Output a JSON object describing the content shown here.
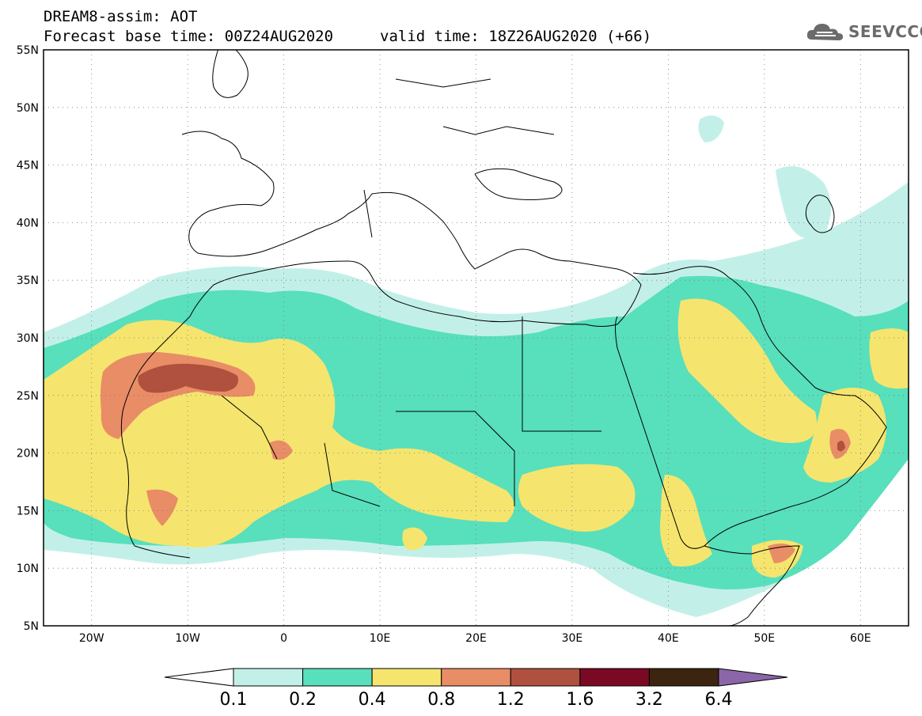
{
  "header": {
    "title": "DREAM8-assim: AOT",
    "base_time": "Forecast base time: 00Z24AUG2020",
    "valid_time": "valid time: 18Z26AUG2020 (+66)",
    "logo_text": "SEEVCCC"
  },
  "map": {
    "lat_labels": [
      "55N",
      "50N",
      "45N",
      "40N",
      "35N",
      "30N",
      "25N",
      "20N",
      "15N",
      "10N",
      "5N"
    ],
    "lon_labels": [
      "20W",
      "10W",
      "0",
      "10E",
      "20E",
      "30E",
      "40E",
      "50E",
      "60E"
    ],
    "lon_range": [
      -25,
      65
    ],
    "lat_range": [
      5,
      55
    ]
  },
  "colorbar": {
    "levels": [
      "0.1",
      "0.2",
      "0.4",
      "0.8",
      "1.2",
      "1.6",
      "3.2",
      "6.4"
    ],
    "colors": [
      "#ffffff",
      "#c2f0e8",
      "#58dfbc",
      "#f5e56e",
      "#e98d66",
      "#b0503e",
      "#7a0a24",
      "#3b2410",
      "#8b66a8"
    ]
  }
}
